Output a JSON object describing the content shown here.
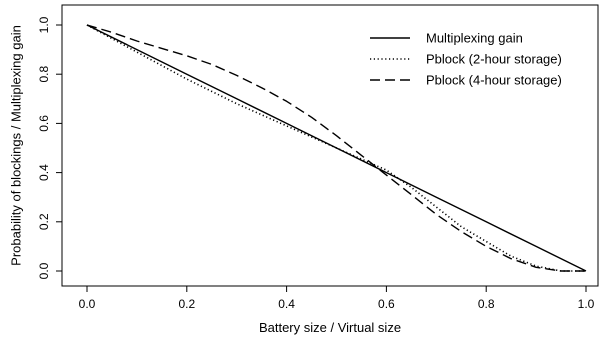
{
  "chart_data": {
    "type": "line",
    "xlabel": "Battery size / Virtual size",
    "ylabel": "Probability of blockings / Multiplexing gain",
    "xlim": [
      0.0,
      1.0
    ],
    "ylim": [
      0.0,
      1.0
    ],
    "x_ticks": [
      "0.0",
      "0.2",
      "0.4",
      "0.6",
      "0.8",
      "1.0"
    ],
    "y_ticks": [
      "0.0",
      "0.2",
      "0.4",
      "0.6",
      "0.8",
      "1.0"
    ],
    "grid": false,
    "legend_position": "top-right",
    "series": [
      {
        "name": "Multiplexing gain",
        "line_style": "solid",
        "color": "#000000",
        "x": [
          0.0,
          0.1,
          0.2,
          0.3,
          0.4,
          0.5,
          0.6,
          0.7,
          0.8,
          0.9,
          1.0
        ],
        "y": [
          1.0,
          0.9,
          0.8,
          0.7,
          0.6,
          0.5,
          0.4,
          0.3,
          0.2,
          0.1,
          0.0
        ]
      },
      {
        "name": "Pblock (2-hour storage)",
        "line_style": "dotted",
        "color": "#000000",
        "x": [
          0.0,
          0.1,
          0.2,
          0.3,
          0.4,
          0.5,
          0.6,
          0.65,
          0.7,
          0.75,
          0.8,
          0.85,
          0.9,
          0.95,
          1.0
        ],
        "y": [
          1.0,
          0.89,
          0.78,
          0.68,
          0.59,
          0.5,
          0.41,
          0.34,
          0.26,
          0.18,
          0.12,
          0.06,
          0.02,
          0.0,
          0.0
        ]
      },
      {
        "name": "Pblock (4-hour storage)",
        "line_style": "dashed",
        "color": "#000000",
        "x": [
          0.0,
          0.05,
          0.1,
          0.15,
          0.2,
          0.25,
          0.3,
          0.35,
          0.4,
          0.45,
          0.5,
          0.55,
          0.6,
          0.65,
          0.7,
          0.75,
          0.8,
          0.85,
          0.9,
          0.95,
          1.0
        ],
        "y": [
          1.0,
          0.97,
          0.935,
          0.905,
          0.875,
          0.84,
          0.795,
          0.745,
          0.69,
          0.625,
          0.55,
          0.47,
          0.39,
          0.31,
          0.23,
          0.16,
          0.1,
          0.05,
          0.015,
          0.0,
          0.0
        ]
      }
    ]
  }
}
